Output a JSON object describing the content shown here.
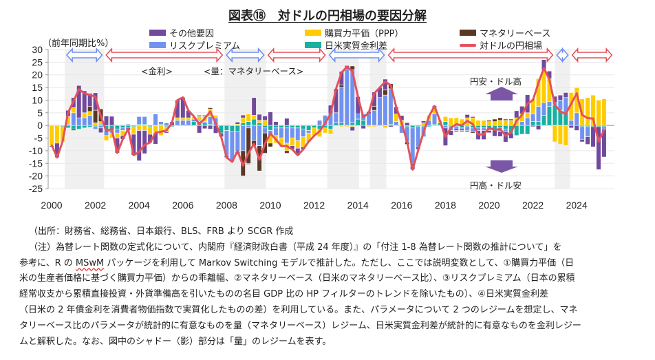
{
  "title": "図表⑱　対ドルの円相場の要因分解",
  "unit_label": "（前年同期比%）",
  "legend": [
    {
      "key": "other",
      "label": "その他要因",
      "color": "#714A9C"
    },
    {
      "key": "ppp",
      "label": "購買力平価（PPP）",
      "color": "#FFCC00"
    },
    {
      "key": "mb",
      "label": "マネタリーベース",
      "color": "#5A3826"
    },
    {
      "key": "risk",
      "label": "リスクプレミアム",
      "color": "#7193F0"
    },
    {
      "key": "rate",
      "label": "日米実質金利差",
      "color": "#18B0A0"
    },
    {
      "key": "fx",
      "label": "対ドルの円相場",
      "color": "#E5515B"
    }
  ],
  "annotations": {
    "rate_regime": "<金利>",
    "quantity_regime": "<量：マネタリーベース>",
    "yen_weak": "円安・ドル高",
    "yen_strong": "円高・ドル安",
    "arrow_color": "#7B56A6"
  },
  "chart_data": {
    "type": "bar+line",
    "title": "図表⑱　対ドルの円相場の要因分解",
    "ylabel": "（前年同期比%）",
    "ylim": [
      -25,
      30
    ],
    "yticks": [
      30,
      25,
      20,
      15,
      10,
      5,
      0,
      -5,
      -10,
      -15,
      -20,
      -25
    ],
    "xticks": [
      "2000",
      "2002",
      "2004",
      "2006",
      "2008",
      "2010",
      "2012",
      "2014",
      "2016",
      "2018",
      "2020",
      "2022",
      "2024"
    ],
    "xlim": [
      2000,
      2026
    ],
    "grid": true,
    "legend_position": "top",
    "period": {
      "start": "2000Q1",
      "end": "2025Q2",
      "frequency": "quarterly"
    },
    "quantity_regime_shading": [
      [
        2000.6,
        2002.4
      ],
      [
        2007.9,
        2009.8
      ],
      [
        2012.6,
        2014.05
      ],
      [
        2014.55,
        2015.3
      ],
      [
        2023.0,
        2023.7
      ]
    ],
    "regime_arrows": [
      {
        "from": 2000.6,
        "to": 2002.4,
        "regime": "quantity",
        "color": "#6F8FEF"
      },
      {
        "from": 2002.4,
        "to": 2007.9,
        "regime": "rate",
        "color": "#E5515B"
      },
      {
        "from": 2007.9,
        "to": 2009.8,
        "regime": "quantity",
        "color": "#6F8FEF"
      },
      {
        "from": 2009.8,
        "to": 2012.6,
        "regime": "rate",
        "color": "#E5515B"
      },
      {
        "from": 2012.6,
        "to": 2015.3,
        "regime": "quantity",
        "color": "#6F8FEF"
      },
      {
        "from": 2015.3,
        "to": 2023.0,
        "regime": "rate",
        "color": "#E5515B"
      },
      {
        "from": 2023.0,
        "to": 2023.7,
        "regime": "quantity",
        "color": "#6F8FEF"
      },
      {
        "from": 2023.7,
        "to": 2025.7,
        "regime": "rate",
        "color": "#E5515B"
      }
    ],
    "series": [
      {
        "key": "rate",
        "name": "日米実質金利差",
        "type": "bar",
        "values": [
          0,
          0,
          -0.5,
          -1,
          -1.5,
          -1.5,
          -1,
          -0.7,
          -0.5,
          0.5,
          -2,
          -2,
          -1.5,
          -1,
          -1,
          -0.5,
          0.5,
          0.5,
          -0.5,
          0,
          0.5,
          -0.5,
          -0.5,
          0,
          0,
          0,
          1.5,
          1.5,
          1,
          0.5,
          0,
          -3,
          -2,
          -2.5,
          -2.5,
          1,
          1.5,
          2.5,
          1,
          -1,
          -2,
          -1,
          -1,
          -1,
          -1,
          -1,
          -1.5,
          -2,
          -1,
          -1.5,
          -1,
          -1.5,
          1,
          1,
          0,
          1,
          2.5,
          2,
          0,
          0,
          0,
          0,
          0.5,
          0,
          0,
          -0.5,
          -1,
          -0.5,
          -0.5,
          -0.5,
          0.5,
          1,
          1.5,
          -0.5,
          -0.5,
          -1,
          -0.5,
          -1,
          -1,
          -1,
          -1,
          -1.5,
          -1,
          -1.5,
          -3,
          -4,
          -3.5,
          -3.5,
          1.5,
          1.5,
          4,
          7.5,
          8,
          6,
          5,
          0,
          0,
          -0.5,
          -0.5,
          -0.5,
          -0.5,
          -0.5
        ]
      },
      {
        "key": "risk",
        "name": "リスクプレミアム",
        "type": "bar",
        "values": [
          0,
          0,
          0,
          0.5,
          5,
          3,
          3,
          4,
          -1,
          -1,
          -2,
          -1,
          -1.5,
          -1,
          0.5,
          0,
          3,
          3,
          0,
          4.5,
          1,
          1,
          0,
          2,
          2,
          2,
          1,
          0.5,
          0.5,
          3,
          3,
          0,
          -10,
          -12,
          -8,
          -10,
          -1,
          -6,
          -8,
          -2,
          -2,
          -3,
          -4,
          -6,
          -4,
          -5,
          -3,
          -1,
          0,
          2,
          4,
          4.5,
          4,
          14,
          22,
          21,
          2,
          2.5,
          4.5,
          6,
          11,
          12,
          14,
          1.5,
          -3,
          -6,
          -14,
          -8,
          -4,
          2,
          4,
          0,
          -1,
          -1.5,
          -1,
          -0.5,
          -1.5,
          -1.5,
          -1,
          -1,
          -1,
          0,
          -1.5,
          -1,
          0,
          0,
          1.5,
          3,
          3,
          6,
          5,
          2,
          1,
          4,
          6,
          2,
          5,
          -5,
          -4,
          0,
          0,
          -1
        ]
      },
      {
        "key": "ppp",
        "name": "購買力平価（PPP）",
        "type": "bar",
        "values": [
          -8,
          -7,
          -6,
          3,
          2,
          0,
          2,
          1.5,
          1,
          1,
          -2,
          -2,
          -2,
          -2,
          0,
          -3,
          -2,
          -2,
          -3,
          -3,
          -4,
          -2,
          0,
          1,
          1,
          1,
          1,
          1.5,
          2,
          3,
          1,
          0,
          0,
          0,
          0.5,
          2,
          3,
          1.5,
          1,
          2,
          -3,
          -3,
          -3,
          -3,
          -3,
          -3,
          -4,
          -3,
          -3,
          -3,
          -2,
          -2,
          0,
          -0.5,
          -0.5,
          -0.5,
          0,
          0,
          -0.5,
          -0.5,
          0,
          -1,
          0,
          3,
          2,
          0,
          0,
          0,
          1,
          2,
          2.5,
          1,
          2,
          3,
          3,
          2.5,
          3,
          3,
          2,
          2,
          1.5,
          1.5,
          2,
          2,
          2,
          3,
          3,
          2,
          6,
          11,
          13,
          9,
          -6.5,
          -7.5,
          -8,
          11,
          10,
          10.5,
          11,
          12,
          10,
          10.5
        ]
      },
      {
        "key": "mb",
        "name": "マネタリーベース",
        "type": "bar",
        "values": [
          0,
          0,
          0,
          0,
          -0.5,
          0,
          0,
          2,
          5,
          5,
          0,
          0,
          0,
          0,
          0,
          0,
          0,
          0,
          0,
          0,
          0,
          0,
          0,
          0,
          0,
          0,
          0,
          0.5,
          0.5,
          0.5,
          0,
          0,
          0,
          0,
          -1,
          -10,
          -14,
          -2,
          -10,
          -8,
          -1.5,
          0,
          0,
          -1,
          0,
          0,
          0,
          0,
          0,
          0,
          0,
          0,
          0,
          1,
          0,
          1.5,
          0,
          0,
          0,
          1.5,
          0,
          2,
          2,
          0,
          0,
          -1,
          -1,
          0,
          0,
          0,
          0,
          0,
          0,
          0,
          -0.5,
          -0.5,
          -0.5,
          -0.5,
          0,
          0,
          0.5,
          1,
          1,
          0.5,
          0.5,
          0,
          0,
          0,
          0,
          0,
          0,
          0,
          0,
          0,
          0,
          0,
          0,
          0,
          0,
          0,
          0,
          0
        ]
      },
      {
        "key": "other",
        "name": "その他要因",
        "type": "bar",
        "values": [
          -0.5,
          -5.7,
          0.1,
          2.5,
          4,
          12.8,
          8.7,
          5.2,
          6.9,
          -1.9,
          3.7,
          3.6,
          -5.9,
          -1.5,
          -0.9,
          -8.3,
          -12,
          -9.2,
          -3.3,
          -4.4,
          0,
          -0.5,
          1.4,
          7,
          8.1,
          2.9,
          0.1,
          -3,
          -1.3,
          -1.5,
          -3.1,
          -1.5,
          -0.7,
          0.1,
          0.8,
          1.1,
          -0.4,
          7,
          2.4,
          1.7,
          5.3,
          1.5,
          -0.2,
          2.8,
          -1.5,
          -2.8,
          -1,
          -0.4,
          -0.1,
          0.2,
          -0.1,
          3.5,
          9.5,
          5.4,
          1.7,
          -1.6,
          6.9,
          -1.3,
          1,
          5.7,
          4,
          4.3,
          -0.6,
          2.8,
          1.9,
          1.1,
          -1.5,
          -1,
          0.8,
          0.1,
          0.7,
          -0.2,
          -7,
          -1.9,
          -0.5,
          -0.5,
          1.3,
          0.5,
          -3.6,
          -3.6,
          -0.9,
          -2.8,
          -1.9,
          -4.1,
          -2.2,
          2.8,
          3.1,
          7.1,
          -0.5,
          -1.7,
          4,
          3,
          2.5,
          2,
          2,
          -1,
          -2,
          -1,
          -3,
          -8,
          -17,
          -11
        ]
      },
      {
        "key": "fx",
        "name": "対ドルの円相場",
        "type": "line",
        "values": [
          -7.7,
          -12.7,
          -6.4,
          5,
          9.5,
          14.3,
          12.7,
          12,
          11.4,
          3.6,
          -2.3,
          -1.4,
          -10.9,
          -5.5,
          -1.4,
          -11.8,
          -10.5,
          -7.7,
          -6.8,
          -2.9,
          -2.5,
          -2,
          0.9,
          10,
          11.1,
          5.9,
          3.6,
          0.5,
          2.7,
          5.5,
          0.9,
          -4.5,
          -12.7,
          -14.4,
          -10.2,
          -15.9,
          -10.9,
          -7.3,
          -13.6,
          -7.3,
          -3.2,
          -5.5,
          -8.2,
          -8.2,
          -9.5,
          -11.8,
          -9.5,
          -6.4,
          -4.1,
          -2.3,
          0.9,
          4.5,
          14.5,
          20.9,
          23.2,
          21.4,
          11.4,
          3.2,
          5,
          12.7,
          15,
          17.3,
          15.9,
          7.3,
          0.9,
          -6.4,
          -17.5,
          -10,
          -2.7,
          3.6,
          7.7,
          1.8,
          -4.5,
          -0.9,
          0.5,
          0,
          1.8,
          0.5,
          -3.6,
          -3.6,
          -0.9,
          -1.8,
          -1.4,
          -4.1,
          -2.7,
          1.8,
          4.1,
          8.6,
          10,
          16.8,
          22.7,
          18.2,
          8.2,
          5.5,
          4.5,
          8.6,
          12.7,
          4.1,
          2.9,
          2.7,
          -6.4,
          -1.8
        ]
      }
    ]
  },
  "notes": {
    "source": "（出所：財務省、総務省、日本銀行、BLS、FRB より SCGR 作成",
    "line2": "（注）為替レート関数の定式化について、内閣府『経済財政白書（平成 24 年度）』の「付注 1-8 為替レート関数の推計について」を",
    "line3_a": "参考に、R の ",
    "line3_b": "MSwM",
    "line3_c": " パッケージを利用して Markov Switching モデルで推計した。ただし、ここでは説明変数として、①購買力平価（日",
    "line4": "米の生産者価格に基づく購買力平価）からの乖離幅、②マネタリーベース（日米のマネタリーベース比）、③リスクプレミアム（日本の累積",
    "line5": "経常収支から累積直接投資・外貨準備高を引いたものの名目 GDP 比の HP フィルターのトレンドを除いたもの）、④日米実質金利差",
    "line6": "（日米の 2 年債金利を消費者物価指数で実質化したものの差）を利用している。また、パラメータについて 2 つのレジームを想定し、マネ",
    "line7": "タリーベース比のパラメータが統計的に有意なものを量（マネタリーベース）レジーム、日米実質金利差が統計的に有意なものを金利レジー",
    "line8": "ムと解釈した。なお、図中のシャドー（影）部分は「量」のレジームを表す。"
  }
}
